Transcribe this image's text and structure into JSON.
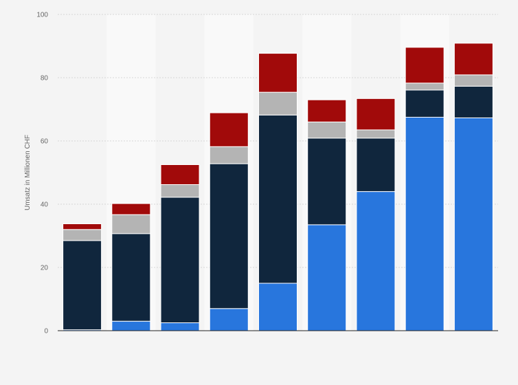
{
  "chart_data": {
    "type": "bar",
    "stacked": true,
    "categories": [
      "",
      "",
      "",
      "",
      "",
      "",
      "",
      "",
      ""
    ],
    "series": [
      {
        "values": [
          0.3,
          3,
          2.5,
          7,
          15,
          33.5,
          44,
          67.5,
          67.3
        ]
      },
      {
        "values": [
          28.2,
          27.7,
          39.7,
          45.8,
          53.2,
          27.4,
          16.9,
          8.6,
          10
        ]
      },
      {
        "values": [
          3.5,
          6,
          4,
          5.4,
          7.2,
          5.1,
          2.6,
          2.2,
          3.6
        ]
      },
      {
        "values": [
          1.8,
          3.5,
          6.3,
          10.7,
          12.3,
          7,
          9.9,
          11.3,
          10
        ]
      }
    ],
    "colors": [
      "#2876dd",
      "#10263d",
      "#b4b4b4",
      "#a10a0a"
    ],
    "ylabel": "Umsatz in Millionen CHF",
    "ylim": [
      0,
      100
    ],
    "yticks": [
      "0",
      "20",
      "40",
      "60",
      "80",
      "100"
    ],
    "grid": true,
    "legend": "none"
  }
}
